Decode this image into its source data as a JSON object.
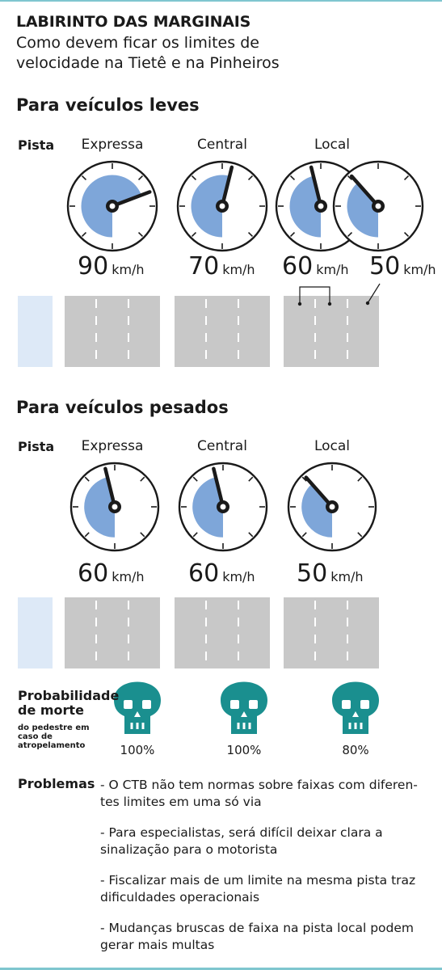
{
  "header": {
    "title": "LABIRINTO DAS MARGINAIS",
    "subtitle": "Como devem ficar os limites de velocidade na Tietê e na Pinheiros"
  },
  "colors": {
    "gauge_fill": "#7ea6d9",
    "road": "#c8c8c8",
    "sidewalk": "#dde9f7",
    "skull": "#1a8f8f",
    "frame": "#7fc6cf"
  },
  "light": {
    "heading": "Para veículos leves",
    "pista_label": "Pista",
    "columns": [
      {
        "label": "Expressa",
        "speed": "90",
        "unit": "km/h"
      },
      {
        "label": "Central",
        "speed": "70",
        "unit": "km/h"
      },
      {
        "label": "Local",
        "speed": "60",
        "unit": "km/h"
      },
      {
        "label": "",
        "speed": "50",
        "unit": "km/h"
      }
    ]
  },
  "heavy": {
    "heading": "Para veículos pesados",
    "pista_label": "Pista",
    "columns": [
      {
        "label": "Expressa",
        "speed": "60",
        "unit": "km/h"
      },
      {
        "label": "Central",
        "speed": "60",
        "unit": "km/h"
      },
      {
        "label": "Local",
        "speed": "50",
        "unit": "km/h"
      }
    ]
  },
  "death": {
    "label_main": "Probabilidade de morte",
    "label_sub": "do pedestre em caso de atropelamento",
    "values": [
      "100%",
      "100%",
      "80%"
    ],
    "icon": "skull-icon"
  },
  "problems": {
    "label": "Problemas",
    "items": [
      "- O CTB não tem normas sobre faixas com diferen-tes limites em uma só via",
      "- Para especialistas, será difícil deixar clara a sinalização para o motorista",
      "- Fiscalizar mais de um limite na mesma pista traz dificuldades operacionais",
      "- Mudanças bruscas de faixa na pista local podem gerar mais multas"
    ]
  }
}
